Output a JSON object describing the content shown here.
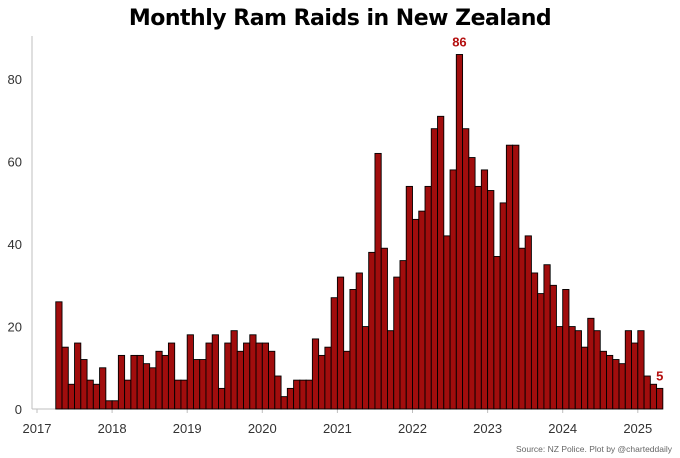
{
  "chart_data": {
    "type": "bar",
    "title": "Monthly Ram Raids in New Zealand",
    "xlabel": "",
    "ylabel": "",
    "ylim": [
      0,
      90
    ],
    "yticks": [
      0,
      20,
      40,
      60,
      80
    ],
    "xticks": [
      "2017",
      "2018",
      "2019",
      "2020",
      "2021",
      "2022",
      "2023",
      "2024",
      "2025"
    ],
    "grid": false,
    "bar_color": "#a10d0d",
    "bar_edge_color": "#000000",
    "annotation_color": "#b40f0f",
    "start": "2017-04",
    "x": [
      "2017-04",
      "2017-05",
      "2017-06",
      "2017-07",
      "2017-08",
      "2017-09",
      "2017-10",
      "2017-11",
      "2017-12",
      "2018-01",
      "2018-02",
      "2018-03",
      "2018-04",
      "2018-05",
      "2018-06",
      "2018-07",
      "2018-08",
      "2018-09",
      "2018-10",
      "2018-11",
      "2018-12",
      "2019-01",
      "2019-02",
      "2019-03",
      "2019-04",
      "2019-05",
      "2019-06",
      "2019-07",
      "2019-08",
      "2019-09",
      "2019-10",
      "2019-11",
      "2019-12",
      "2020-01",
      "2020-02",
      "2020-03",
      "2020-04",
      "2020-05",
      "2020-06",
      "2020-07",
      "2020-08",
      "2020-09",
      "2020-10",
      "2020-11",
      "2020-12",
      "2021-01",
      "2021-02",
      "2021-03",
      "2021-04",
      "2021-05",
      "2021-06",
      "2021-07",
      "2021-08",
      "2021-09",
      "2021-10",
      "2021-11",
      "2021-12",
      "2022-01",
      "2022-02",
      "2022-03",
      "2022-04",
      "2022-05",
      "2022-06",
      "2022-07",
      "2022-08",
      "2022-09",
      "2022-10",
      "2022-11",
      "2022-12",
      "2023-01",
      "2023-02",
      "2023-03",
      "2023-04",
      "2023-05",
      "2023-06",
      "2023-07",
      "2023-08",
      "2023-09",
      "2023-10",
      "2023-11",
      "2023-12",
      "2024-01",
      "2024-02",
      "2024-03",
      "2024-04",
      "2024-05",
      "2024-06",
      "2024-07",
      "2024-08",
      "2024-09",
      "2024-10",
      "2024-11",
      "2024-12",
      "2025-01",
      "2025-02",
      "2025-03",
      "2025-04"
    ],
    "values": [
      26,
      15,
      6,
      16,
      12,
      7,
      6,
      10,
      2,
      2,
      13,
      7,
      13,
      13,
      11,
      10,
      14,
      13,
      16,
      7,
      7,
      18,
      12,
      12,
      16,
      18,
      5,
      16,
      19,
      14,
      16,
      18,
      16,
      16,
      14,
      8,
      3,
      5,
      7,
      7,
      7,
      17,
      13,
      15,
      27,
      32,
      14,
      29,
      33,
      20,
      38,
      62,
      39,
      19,
      32,
      36,
      54,
      46,
      48,
      54,
      68,
      71,
      42,
      58,
      86,
      68,
      61,
      54,
      58,
      53,
      37,
      50,
      64,
      64,
      39,
      42,
      33,
      28,
      35,
      30,
      20,
      29,
      20,
      19,
      15,
      22,
      19,
      14,
      13,
      12,
      11,
      19,
      16,
      19,
      8,
      6,
      5
    ],
    "annotations": [
      {
        "label": "86",
        "x": "2022-08"
      },
      {
        "label": "5",
        "x": "2025-04"
      }
    ]
  },
  "source": "Source: NZ Police.  Plot by @charteddaily"
}
